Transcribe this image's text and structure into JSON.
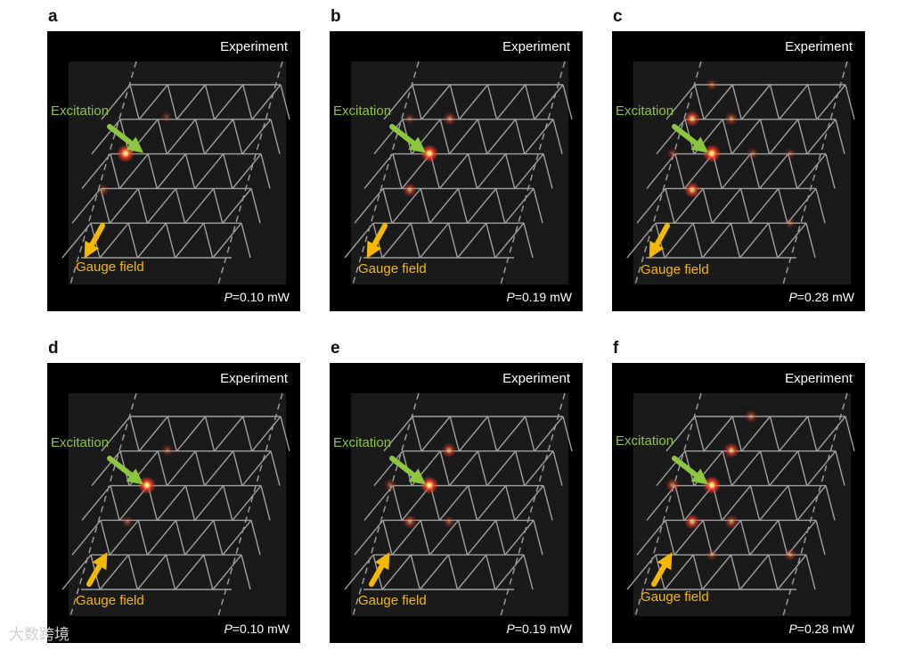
{
  "figure": {
    "panels": [
      {
        "letter": "a",
        "experiment_label": "Experiment",
        "power_symbol": "P",
        "power_text": "=0.10 mW",
        "excitation_label": "Excitation",
        "gauge_label": "Gauge field",
        "gauge_arrow": "down-left-arrow"
      },
      {
        "letter": "b",
        "experiment_label": "Experiment",
        "power_symbol": "P",
        "power_text": "=0.19 mW",
        "excitation_label": "Excitation",
        "gauge_label": "Gauge field",
        "gauge_arrow": "down-left-arrow"
      },
      {
        "letter": "c",
        "experiment_label": "Experiment",
        "power_symbol": "P",
        "power_text": "=0.28 mW",
        "excitation_label": "Excitation",
        "gauge_label": "Gauge field",
        "gauge_arrow": "down-left-arrow"
      },
      {
        "letter": "d",
        "experiment_label": "Experiment",
        "power_symbol": "P",
        "power_text": "=0.10 mW",
        "excitation_label": "Excitation",
        "gauge_label": "Gauge field",
        "gauge_arrow": "up-right-arrow"
      },
      {
        "letter": "e",
        "experiment_label": "Experiment",
        "power_symbol": "P",
        "power_text": "=0.19 mW",
        "excitation_label": "Excitation",
        "gauge_label": "Gauge field",
        "gauge_arrow": "up-right-arrow"
      },
      {
        "letter": "f",
        "experiment_label": "Experiment",
        "power_symbol": "P",
        "power_text": "=0.28 mW",
        "excitation_label": "Excitation",
        "gauge_label": "Gauge field",
        "gauge_arrow": "up-right-arrow"
      }
    ],
    "colors": {
      "background": "#000000",
      "lattice": "#b8b8b8",
      "excitation_arrow": "#8cc63f",
      "gauge_arrow": "#f5b800",
      "emission": "#ff3a2a"
    }
  },
  "watermark": "大数跨境"
}
